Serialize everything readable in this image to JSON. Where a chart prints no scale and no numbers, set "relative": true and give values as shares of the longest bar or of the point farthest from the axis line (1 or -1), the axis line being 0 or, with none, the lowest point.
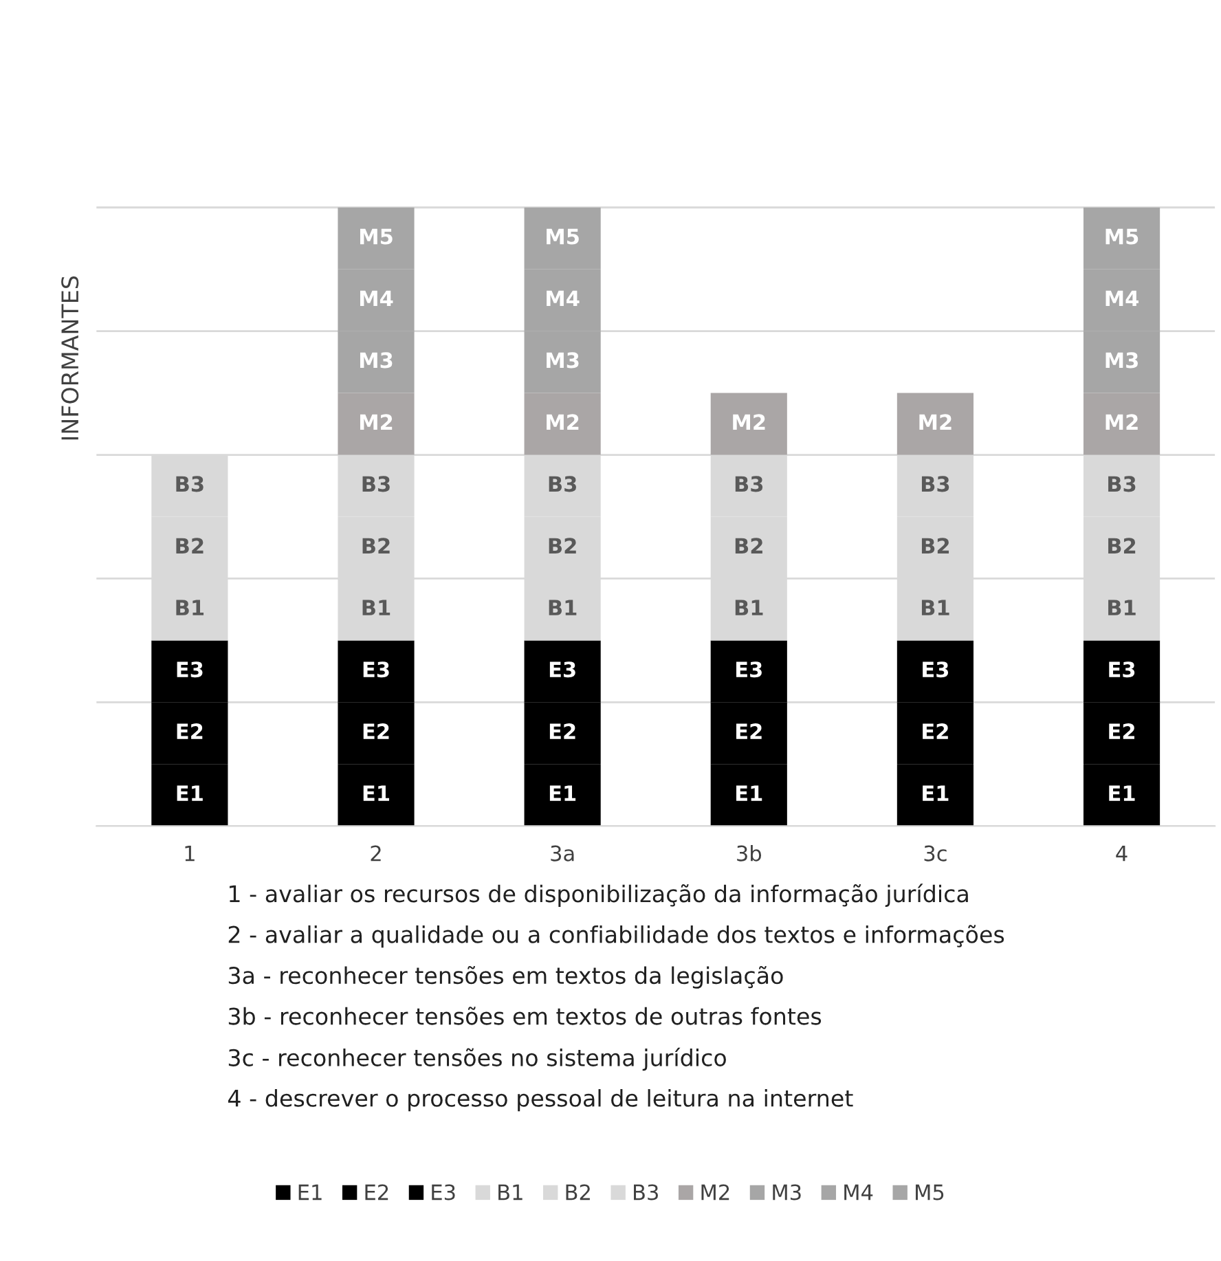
{
  "chart_data": {
    "type": "bar",
    "stacked": true,
    "relative": true,
    "ylabel": "INFORMANTES",
    "grid": "y",
    "legend": "bottom",
    "categories": [
      "1",
      "2",
      "3a",
      "3b",
      "3c",
      "4"
    ],
    "series": [
      {
        "name": "E1",
        "color": "#000000",
        "values": [
          0.1,
          0.1,
          0.1,
          0.1,
          0.1,
          0.1
        ]
      },
      {
        "name": "E2",
        "color": "#000000",
        "values": [
          0.1,
          0.1,
          0.1,
          0.1,
          0.1,
          0.1
        ]
      },
      {
        "name": "E3",
        "color": "#000000",
        "values": [
          0.1,
          0.1,
          0.1,
          0.1,
          0.1,
          0.1
        ]
      },
      {
        "name": "B1",
        "color": "#d9d9d9",
        "values": [
          0.1,
          0.1,
          0.1,
          0.1,
          0.1,
          0.1
        ]
      },
      {
        "name": "B2",
        "color": "#d9d9d9",
        "values": [
          0.1,
          0.1,
          0.1,
          0.1,
          0.1,
          0.1
        ]
      },
      {
        "name": "B3",
        "color": "#d9d9d9",
        "values": [
          0.1,
          0.1,
          0.1,
          0.1,
          0.1,
          0.1
        ]
      },
      {
        "name": "M2",
        "color": "#aaa6a6",
        "values": [
          null,
          0.1,
          0.1,
          0.1,
          0.1,
          0.1
        ]
      },
      {
        "name": "M3",
        "color": "#a6a6a6",
        "values": [
          null,
          0.1,
          0.1,
          null,
          null,
          0.1
        ]
      },
      {
        "name": "M4",
        "color": "#a6a6a6",
        "values": [
          null,
          0.1,
          0.1,
          null,
          null,
          0.1
        ]
      },
      {
        "name": "M5",
        "color": "#a6a6a6",
        "values": [
          null,
          0.1,
          0.1,
          null,
          null,
          0.1
        ]
      }
    ],
    "annotations": [
      "1 - avaliar os recursos de disponibilização da informação jurídica",
      "2 - avaliar a qualidade ou a confiabilidade dos textos e informações",
      "3a - reconhecer tensões em textos da legislação",
      "3b - reconhecer tensões em textos de outras fontes",
      "3c - reconhecer tensões no sistema jurídico",
      "4 - descrever o processo pessoal de leitura na internet"
    ]
  }
}
